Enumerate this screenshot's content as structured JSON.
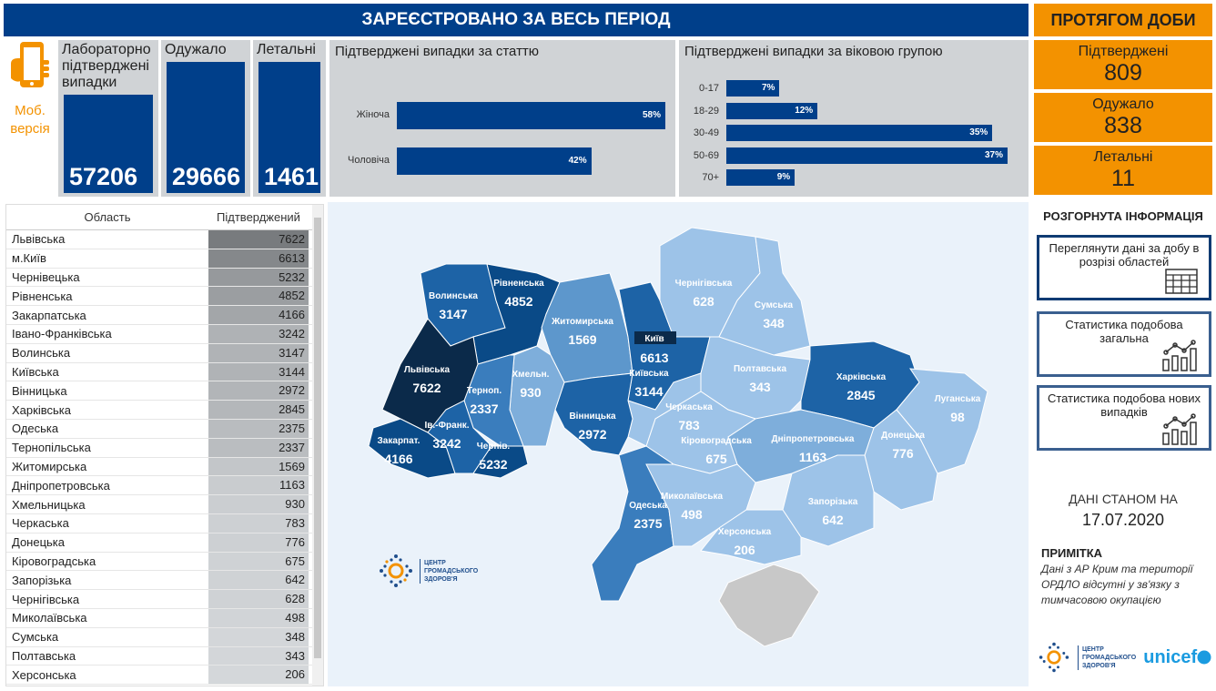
{
  "header": {
    "title": "ЗАРЕЄСТРОВАНО ЗА ВЕСЬ ПЕРІОД",
    "day_title": "ПРОТЯГОМ ДОБИ"
  },
  "mobile": {
    "label": "Моб. версія",
    "icon": "smartphone-hand-icon"
  },
  "totals": [
    {
      "label": "Лабораторно підтверджені випадки",
      "value": "57206"
    },
    {
      "label": "Одужало",
      "value": "29666"
    },
    {
      "label": "Летальні",
      "value": "1461"
    }
  ],
  "gender": {
    "title": "Підтверджені випадки за статтю",
    "items": [
      {
        "label": "Жіноча",
        "pct": 58,
        "text": "58%"
      },
      {
        "label": "Чоловіча",
        "pct": 42,
        "text": "42%"
      }
    ]
  },
  "age": {
    "title": "Підтверджені випадки за віковою групою",
    "items": [
      {
        "label": "0-17",
        "pct": 7,
        "text": "7%"
      },
      {
        "label": "18-29",
        "pct": 12,
        "text": "12%"
      },
      {
        "label": "30-49",
        "pct": 35,
        "text": "35%"
      },
      {
        "label": "50-69",
        "pct": 37,
        "text": "37%"
      },
      {
        "label": "70+",
        "pct": 9,
        "text": "9%"
      }
    ]
  },
  "daily": [
    {
      "label": "Підтверджені",
      "value": "809"
    },
    {
      "label": "Одужало",
      "value": "838"
    },
    {
      "label": "Летальні",
      "value": "11"
    }
  ],
  "table": {
    "headers": [
      "Область",
      "Підтверджений"
    ],
    "rows": [
      [
        "Львівська",
        7622
      ],
      [
        "м.Київ",
        6613
      ],
      [
        "Чернівецька",
        5232
      ],
      [
        "Рівненська",
        4852
      ],
      [
        "Закарпатська",
        4166
      ],
      [
        "Івано-Франківська",
        3242
      ],
      [
        "Волинська",
        3147
      ],
      [
        "Київська",
        3144
      ],
      [
        "Вінницька",
        2972
      ],
      [
        "Харківська",
        2845
      ],
      [
        "Одеська",
        2375
      ],
      [
        "Тернопільська",
        2337
      ],
      [
        "Житомирська",
        1569
      ],
      [
        "Дніпропетровська",
        1163
      ],
      [
        "Хмельницька",
        930
      ],
      [
        "Черкаська",
        783
      ],
      [
        "Донецька",
        776
      ],
      [
        "Кіровоградська",
        675
      ],
      [
        "Запорізька",
        642
      ],
      [
        "Чернігівська",
        628
      ],
      [
        "Миколаївська",
        498
      ],
      [
        "Сумська",
        348
      ],
      [
        "Полтавська",
        343
      ],
      [
        "Херсонська",
        206
      ]
    ]
  },
  "map": {
    "regions": [
      {
        "label": "Волинська",
        "value": "3147"
      },
      {
        "label": "Рівненська",
        "value": "4852"
      },
      {
        "label": "Житомирська",
        "value": "1569"
      },
      {
        "label": "Київська",
        "value": "3144"
      },
      {
        "label": "Чернігівська",
        "value": "628"
      },
      {
        "label": "Сумська",
        "value": "348"
      },
      {
        "label": "Полтавська",
        "value": "343"
      },
      {
        "label": "Харківська",
        "value": "2845"
      },
      {
        "label": "Луганська",
        "value": "98"
      },
      {
        "label": "Донецька",
        "value": "776"
      },
      {
        "label": "Запорізька",
        "value": "642"
      },
      {
        "label": "Дніпропетровська",
        "value": "1163"
      },
      {
        "label": "Кіровоградська",
        "value": "675"
      },
      {
        "label": "Черкаська",
        "value": "783"
      },
      {
        "label": "Вінницька",
        "value": "2972"
      },
      {
        "label": "Хмельн.",
        "value": "930"
      },
      {
        "label": "Терноп.",
        "value": "2337"
      },
      {
        "label": "Львівська",
        "value": "7622"
      },
      {
        "label": "Закарпат.",
        "value": "4166"
      },
      {
        "label": "Ів.-Франк.",
        "value": "3242"
      },
      {
        "label": "Чернів.",
        "value": "5232"
      },
      {
        "label": "Одеська",
        "value": "2375"
      },
      {
        "label": "Миколаївська",
        "value": "498"
      },
      {
        "label": "Херсонська",
        "value": "206"
      }
    ],
    "kyiv": {
      "label": "Київ",
      "value": "6613"
    },
    "crimea_color": "#c8c8c8"
  },
  "logo": {
    "line1": "ЦЕНТР",
    "line2": "ГРОМАДСЬКОГО",
    "line3": "ЗДОРОВ'Я",
    "unicef": "unicef"
  },
  "side": {
    "title": "РОЗГОРНУТА ІНФОРМАЦІЯ",
    "buttons": [
      {
        "label": "Переглянути дані за добу в розрізі областей",
        "icon": "table-icon"
      },
      {
        "label": "Статистика подобова загальна",
        "icon": "chart-icon"
      },
      {
        "label": "Статистика подобова нових випадків",
        "icon": "chart-icon"
      }
    ],
    "date_label": "ДАНІ СТАНОМ НА",
    "date": "17.07.2020",
    "note_title": "ПРИМІТКА",
    "note": "Дані з АР Крим та території ОРДЛО відсутні у зв'язку з тимчасовою окупацією"
  },
  "colors": {
    "navy": "#003f8a",
    "orange": "#f39200",
    "panel": "#d0d3d6"
  }
}
